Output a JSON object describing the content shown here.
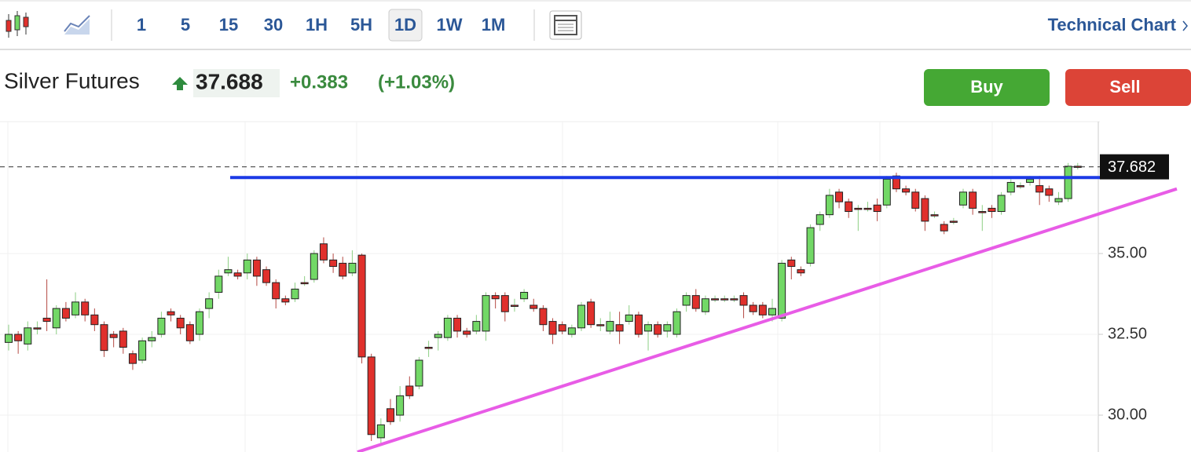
{
  "toolbar": {
    "intervals": [
      "1",
      "5",
      "15",
      "30",
      "1H",
      "5H",
      "1D",
      "1W",
      "1M"
    ],
    "active": "1D",
    "link": "Technical Chart"
  },
  "quote": {
    "name": "Silver Futures",
    "price": "37.688",
    "change": "+0.383",
    "change_pct": "(+1.03%)"
  },
  "actions": {
    "buy": "Buy",
    "sell": "Sell"
  },
  "chart_data": {
    "type": "candlestick",
    "open": [
      32.25,
      32.5,
      32.2,
      32.7,
      33.0,
      32.7,
      33.3,
      33.1,
      33.5,
      33.1,
      32.8,
      32.5,
      32.6,
      31.9,
      31.7,
      32.3,
      32.5,
      33.2,
      33.0,
      32.8,
      32.5,
      33.3,
      33.8,
      34.4,
      34.4,
      34.4,
      34.8,
      34.5,
      34.1,
      33.6,
      33.6,
      34.1,
      34.2,
      35.3,
      34.8,
      34.7,
      34.4,
      34.95,
      31.8,
      29.3,
      30.2,
      30.0,
      30.9,
      30.9,
      32.1,
      32.4,
      32.4,
      33.0,
      32.6,
      32.6,
      32.6,
      33.7,
      33.7,
      33.4,
      33.6,
      33.4,
      33.3,
      32.9,
      32.8,
      32.5,
      32.7,
      33.5,
      32.8,
      32.6,
      32.8,
      32.9,
      33.1,
      32.6,
      32.8,
      32.6,
      32.5,
      33.4,
      33.7,
      33.2,
      33.6,
      33.6,
      33.6,
      33.7,
      33.4,
      33.4,
      33.1,
      33.0,
      34.8,
      34.5,
      34.7,
      35.9,
      36.2,
      36.9,
      36.6,
      36.4,
      36.4,
      36.5,
      36.5,
      37.4,
      37.0,
      36.9,
      36.7,
      36.2,
      35.9,
      36.0,
      36.5,
      36.9,
      36.3,
      36.4,
      36.3,
      36.9,
      37.1,
      37.2,
      37.1,
      37.0,
      36.6,
      36.7,
      37.7
    ],
    "high": [
      32.8,
      32.6,
      32.9,
      32.9,
      34.2,
      33.4,
      33.5,
      33.8,
      33.6,
      33.3,
      32.9,
      32.6,
      32.7,
      32.0,
      32.4,
      32.6,
      33.2,
      33.3,
      33.1,
      32.9,
      33.3,
      33.8,
      34.5,
      34.9,
      34.5,
      35.0,
      34.9,
      34.6,
      34.2,
      33.7,
      34.1,
      34.3,
      35.1,
      35.5,
      35.0,
      34.9,
      35.1,
      35.0,
      31.9,
      29.9,
      30.5,
      30.9,
      31.2,
      31.8,
      32.3,
      32.6,
      33.1,
      33.1,
      32.7,
      33.1,
      33.8,
      33.8,
      33.8,
      33.6,
      33.9,
      33.6,
      33.4,
      33.0,
      32.9,
      32.8,
      33.5,
      33.6,
      33.0,
      33.2,
      33.2,
      33.4,
      33.2,
      32.9,
      32.9,
      32.9,
      33.3,
      33.8,
      33.9,
      33.7,
      33.7,
      33.7,
      33.7,
      33.8,
      33.5,
      33.5,
      33.6,
      34.8,
      34.9,
      34.6,
      35.9,
      36.3,
      37.0,
      37.0,
      36.7,
      36.5,
      36.6,
      36.7,
      37.4,
      37.5,
      37.1,
      37.0,
      36.8,
      36.3,
      36.0,
      36.1,
      37.0,
      37.0,
      36.5,
      36.5,
      36.9,
      37.3,
      37.2,
      37.4,
      37.4,
      37.1,
      36.9,
      37.8,
      37.8
    ],
    "low": [
      32.0,
      31.9,
      32.0,
      32.5,
      32.6,
      32.5,
      32.9,
      33.0,
      32.9,
      32.6,
      31.8,
      32.1,
      31.9,
      31.4,
      31.6,
      32.1,
      32.4,
      32.9,
      32.5,
      32.2,
      32.3,
      33.0,
      33.6,
      34.3,
      34.2,
      34.2,
      34.0,
      34.0,
      33.3,
      33.4,
      33.5,
      34.0,
      34.1,
      34.7,
      34.4,
      34.2,
      34.3,
      31.6,
      29.2,
      29.1,
      29.7,
      29.8,
      30.5,
      30.8,
      31.8,
      32.0,
      32.3,
      32.4,
      32.4,
      32.5,
      32.3,
      33.3,
      32.9,
      33.2,
      33.5,
      33.2,
      32.6,
      32.2,
      32.5,
      32.4,
      32.6,
      32.7,
      32.6,
      32.5,
      32.2,
      32.8,
      32.4,
      32.0,
      32.4,
      32.4,
      32.4,
      33.2,
      33.2,
      33.1,
      33.5,
      33.5,
      33.5,
      33.0,
      33.1,
      33.0,
      32.9,
      32.9,
      34.2,
      34.3,
      34.6,
      35.7,
      36.1,
      36.4,
      36.1,
      35.7,
      36.3,
      36.0,
      36.4,
      36.9,
      36.8,
      36.3,
      35.7,
      36.1,
      35.6,
      35.9,
      36.4,
      36.2,
      35.7,
      36.1,
      36.2,
      36.8,
      37.0,
      37.1,
      36.5,
      36.6,
      36.5,
      36.6,
      37.6
    ],
    "close": [
      32.5,
      32.3,
      32.7,
      32.7,
      32.9,
      33.3,
      33.0,
      33.5,
      33.1,
      32.8,
      32.0,
      32.4,
      32.1,
      31.6,
      32.3,
      32.4,
      33.0,
      33.1,
      32.7,
      32.3,
      33.2,
      33.6,
      34.3,
      34.5,
      34.3,
      34.8,
      34.3,
      34.1,
      33.6,
      33.5,
      33.9,
      34.1,
      35.0,
      34.8,
      34.6,
      34.3,
      34.7,
      31.8,
      29.4,
      29.7,
      29.8,
      30.6,
      30.6,
      31.7,
      32.1,
      32.5,
      33.0,
      32.6,
      32.5,
      32.9,
      33.7,
      33.6,
      33.2,
      33.4,
      33.8,
      33.3,
      32.8,
      32.5,
      32.6,
      32.7,
      33.4,
      32.8,
      32.8,
      32.9,
      32.6,
      33.1,
      32.5,
      32.8,
      32.5,
      32.8,
      33.2,
      33.7,
      33.3,
      33.6,
      33.6,
      33.6,
      33.6,
      33.4,
      33.2,
      33.1,
      33.3,
      34.7,
      34.6,
      34.4,
      35.8,
      36.2,
      36.8,
      36.6,
      36.3,
      36.4,
      36.4,
      36.3,
      37.3,
      37.0,
      36.9,
      36.4,
      36.0,
      36.2,
      35.7,
      36.0,
      36.9,
      36.4,
      36.3,
      36.3,
      36.8,
      37.2,
      37.1,
      37.3,
      36.9,
      36.8,
      36.7,
      37.7,
      37.7
    ],
    "up_color": "#72d866",
    "down_color": "#e0302c",
    "ylim": [
      28.86,
      39.08
    ],
    "yticks": [
      {
        "value": 30,
        "label": "30.00"
      },
      {
        "value": 32.5,
        "label": "32.50"
      },
      {
        "value": 35,
        "label": "35.00"
      }
    ],
    "last_price": {
      "value": 37.682,
      "label": "37.682"
    },
    "lines": [
      {
        "color": "#1c3ae6",
        "values": [
          37.35,
          37.35
        ]
      },
      {
        "color": "#e85ce6",
        "values": [
          28.86,
          37.0
        ]
      }
    ]
  }
}
